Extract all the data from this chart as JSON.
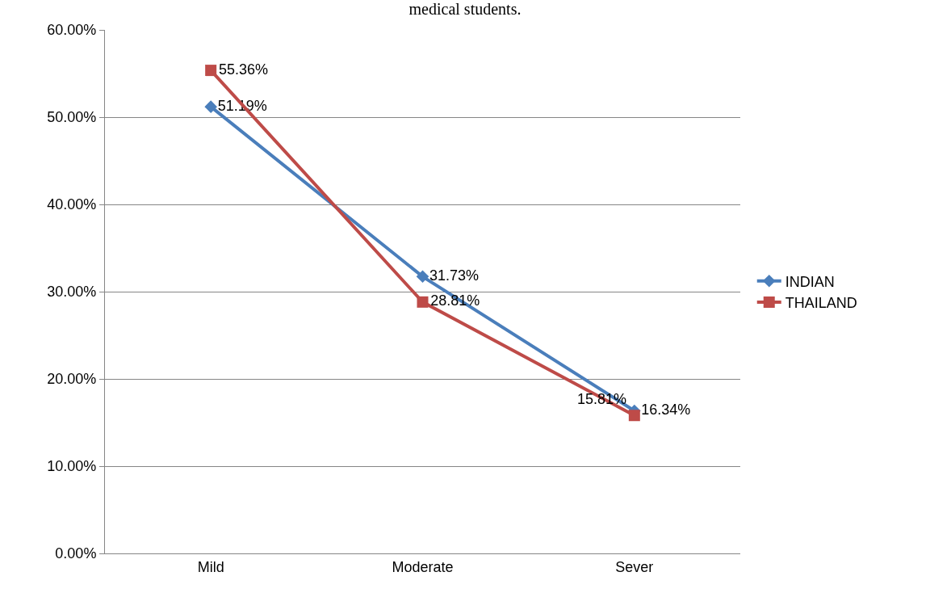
{
  "chart_data": {
    "type": "line",
    "title": "medical students.",
    "categories": [
      "Mild",
      "Moderate",
      "Sever"
    ],
    "series": [
      {
        "name": "INDIAN",
        "color": "#4a7ebb",
        "marker": "diamond",
        "values": [
          51.19,
          31.73,
          16.34
        ],
        "value_labels": [
          "51.19%",
          "31.73%",
          "16.34%"
        ]
      },
      {
        "name": "THAILAND",
        "color": "#be4b48",
        "marker": "square",
        "values": [
          55.36,
          28.81,
          15.81
        ],
        "value_labels": [
          "55.36%",
          "28.81%",
          "15.81%"
        ]
      }
    ],
    "ylim": [
      0,
      60
    ],
    "yticks": [
      {
        "value": 0,
        "label": "0.00%"
      },
      {
        "value": 10,
        "label": "10.00%"
      },
      {
        "value": 20,
        "label": "20.00%"
      },
      {
        "value": 30,
        "label": "30.00%"
      },
      {
        "value": 40,
        "label": "40.00%"
      },
      {
        "value": 50,
        "label": "50.00%"
      },
      {
        "value": 60,
        "label": "60.00%"
      }
    ],
    "grid": "y",
    "legend": "right",
    "line_style": "solid"
  }
}
